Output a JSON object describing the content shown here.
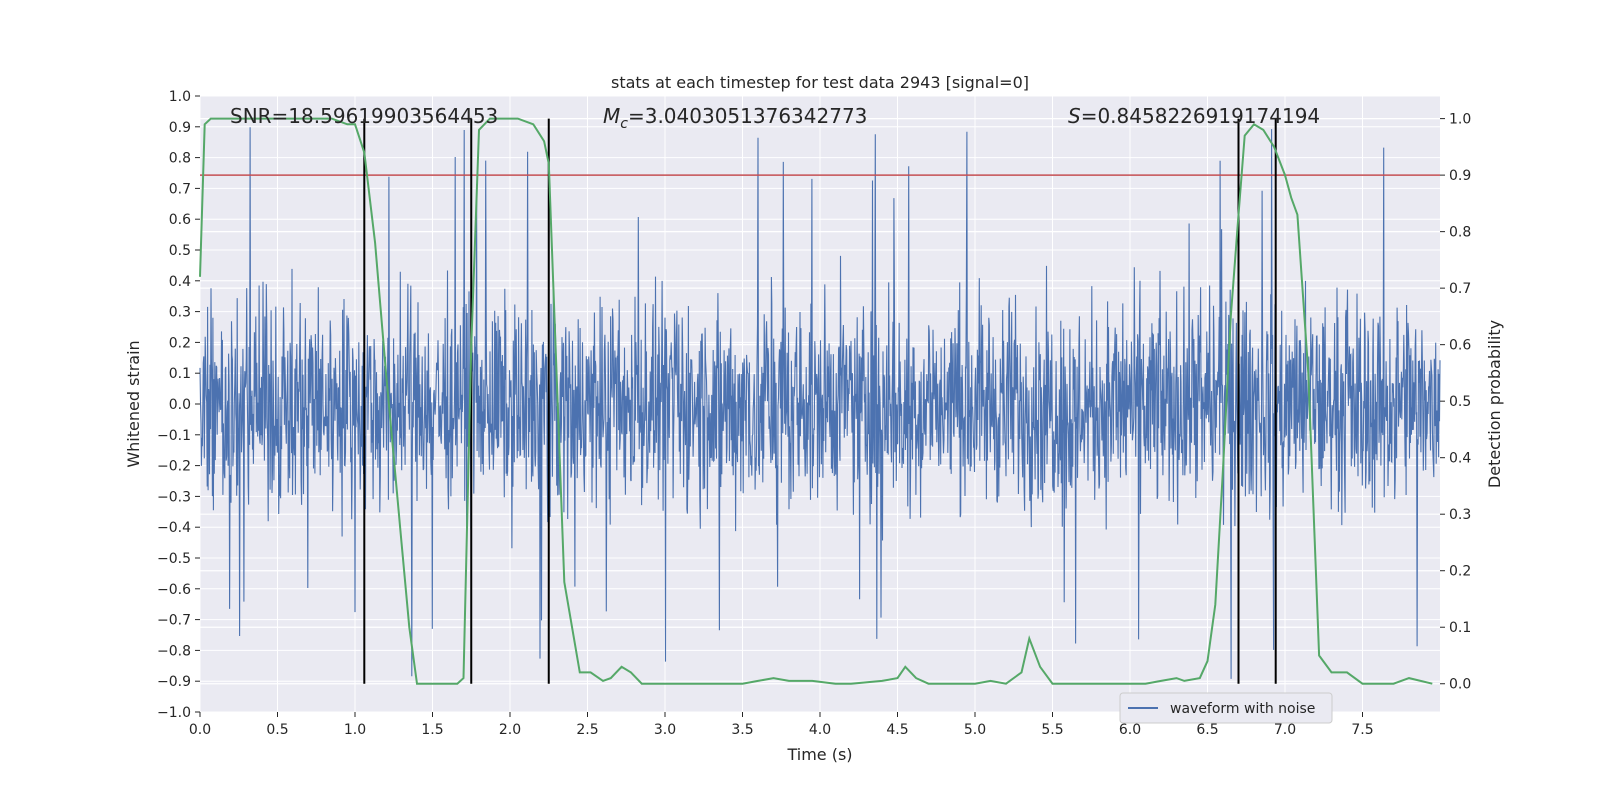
{
  "chart_data": {
    "type": "line",
    "title": "stats at each timestep for test data 2943 [signal=0]",
    "xlabel": "Time (s)",
    "ylabel_left": "Whitened strain",
    "ylabel_right": "Detection probability",
    "xlim": [
      0,
      8
    ],
    "ylim_left": [
      -1.0,
      1.0
    ],
    "ylim_right": [
      -0.05,
      1.04
    ],
    "x_ticks": [
      "0.0",
      "0.5",
      "1.0",
      "1.5",
      "2.0",
      "2.5",
      "3.0",
      "3.5",
      "4.0",
      "4.5",
      "5.0",
      "5.5",
      "6.0",
      "6.5",
      "7.0",
      "7.5"
    ],
    "y_ticks_left": [
      "1.0",
      "0.9",
      "0.8",
      "0.7",
      "0.6",
      "0.5",
      "0.4",
      "0.3",
      "0.2",
      "0.1",
      "0.0",
      "−0.1",
      "−0.2",
      "−0.3",
      "−0.4",
      "−0.5",
      "−0.6",
      "−0.7",
      "−0.8",
      "−0.9",
      "−1.0"
    ],
    "y_ticks_right": [
      "1.0",
      "0.9",
      "0.8",
      "0.7",
      "0.6",
      "0.5",
      "0.4",
      "0.3",
      "0.2",
      "0.1",
      "0.0"
    ],
    "grid": true,
    "legend_position": "bottom-right",
    "annotations": {
      "snr": "SNR=18.59619903564453",
      "mc_prefix": "M",
      "mc_sub": "c",
      "mc_value": "=3.0403051376342773",
      "s_prefix": "S",
      "s_value": "=0.8458226919174194"
    },
    "threshold": {
      "value": 0.9,
      "axis": "right",
      "color": "#c44e52"
    },
    "vertical_lines": [
      1.06,
      1.75,
      2.25,
      6.7,
      6.94
    ],
    "series": [
      {
        "name": "waveform with noise",
        "axis": "left",
        "color": "#4c72b0",
        "kind": "noise",
        "typical_amplitude": 0.35,
        "max_peak": 0.95,
        "min_peak": -0.9
      },
      {
        "axis": "right",
        "color": "#55a868",
        "x": [
          0.0,
          0.03,
          0.07,
          0.12,
          0.2,
          0.3,
          0.5,
          0.7,
          0.85,
          0.95,
          1.0,
          1.06,
          1.13,
          1.2,
          1.25,
          1.3,
          1.35,
          1.4,
          1.5,
          1.6,
          1.66,
          1.7,
          1.75,
          1.8,
          1.87,
          1.95,
          2.05,
          2.15,
          2.22,
          2.25,
          2.35,
          2.45,
          2.52,
          2.6,
          2.65,
          2.72,
          2.78,
          2.85,
          3.0,
          3.2,
          3.5,
          3.6,
          3.7,
          3.8,
          3.95,
          4.1,
          4.2,
          4.4,
          4.5,
          4.55,
          4.62,
          4.7,
          4.85,
          5.0,
          5.1,
          5.2,
          5.3,
          5.35,
          5.42,
          5.5,
          5.6,
          5.8,
          6.0,
          6.1,
          6.2,
          6.3,
          6.35,
          6.45,
          6.5,
          6.55,
          6.6,
          6.65,
          6.7,
          6.74,
          6.8,
          6.86,
          6.93,
          7.0,
          7.04,
          7.08,
          7.15,
          7.22,
          7.3,
          7.4,
          7.5,
          7.6,
          7.7,
          7.8,
          7.95
        ],
        "values": [
          0.72,
          0.99,
          1.0,
          1.0,
          1.0,
          1.0,
          1.0,
          1.0,
          1.0,
          0.99,
          0.99,
          0.94,
          0.78,
          0.55,
          0.4,
          0.25,
          0.1,
          0.0,
          0.0,
          0.0,
          0.0,
          0.01,
          0.6,
          0.98,
          1.0,
          1.0,
          1.0,
          0.99,
          0.96,
          0.92,
          0.18,
          0.02,
          0.02,
          0.005,
          0.01,
          0.03,
          0.02,
          0.0,
          0.0,
          0.0,
          0.0,
          0.005,
          0.01,
          0.005,
          0.005,
          0.0,
          0.0,
          0.005,
          0.01,
          0.03,
          0.01,
          0.0,
          0.0,
          0.0,
          0.005,
          0.0,
          0.02,
          0.08,
          0.03,
          0.0,
          0.0,
          0.0,
          0.0,
          0.0,
          0.005,
          0.01,
          0.005,
          0.01,
          0.04,
          0.14,
          0.38,
          0.65,
          0.83,
          0.97,
          0.99,
          0.98,
          0.95,
          0.9,
          0.86,
          0.83,
          0.55,
          0.05,
          0.02,
          0.02,
          0.0,
          0.0,
          0.0,
          0.01,
          0.0
        ]
      }
    ]
  }
}
